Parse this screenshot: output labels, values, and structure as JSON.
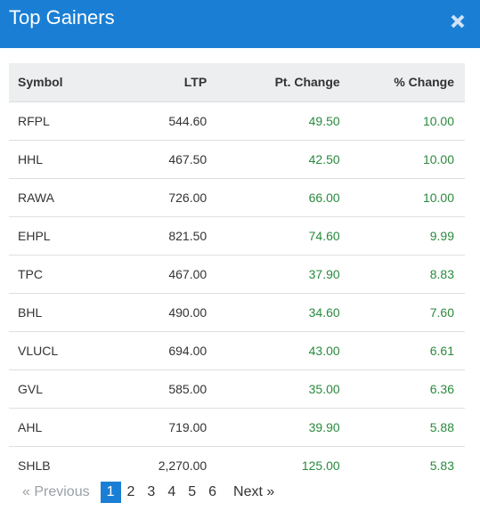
{
  "header": {
    "title": "Top Gainers",
    "close_icon": "close-icon"
  },
  "table": {
    "columns": [
      "Symbol",
      "LTP",
      "Pt. Change",
      "% Change"
    ],
    "rows": [
      [
        "RFPL",
        "544.60",
        "49.50",
        "10.00"
      ],
      [
        "HHL",
        "467.50",
        "42.50",
        "10.00"
      ],
      [
        "RAWA",
        "726.00",
        "66.00",
        "10.00"
      ],
      [
        "EHPL",
        "821.50",
        "74.60",
        "9.99"
      ],
      [
        "TPC",
        "467.00",
        "37.90",
        "8.83"
      ],
      [
        "BHL",
        "490.00",
        "34.60",
        "7.60"
      ],
      [
        "VLUCL",
        "694.00",
        "43.00",
        "6.61"
      ],
      [
        "GVL",
        "585.00",
        "35.00",
        "6.36"
      ],
      [
        "AHL",
        "719.00",
        "39.90",
        "5.88"
      ],
      [
        "SHLB",
        "2,270.00",
        "125.00",
        "5.83"
      ]
    ]
  },
  "pagination": {
    "prev_label": "Previous",
    "next_label": "Next",
    "pages": [
      "1",
      "2",
      "3",
      "4",
      "5",
      "6"
    ],
    "current_page": "1"
  },
  "colors": {
    "header_bg": "#1a7fd4",
    "positive": "#2a8a3e",
    "table_header_bg": "#eceef0"
  }
}
